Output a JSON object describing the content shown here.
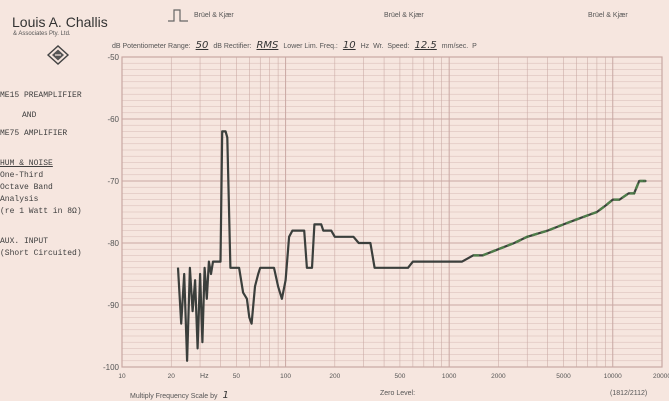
{
  "header": {
    "company": "Louis A. Challis",
    "company_sub": "& Associates Pty. Ltd.",
    "brands": [
      "Brüel & Kjær",
      "Brüel & Kjær",
      "Brüel & Kjær"
    ],
    "potentiometer_label": "dB Potentiometer Range:",
    "potentiometer_value": "50",
    "rectifier_label": "dB  Rectifier:",
    "rectifier_value": "RMS",
    "lower_freq_label": "Lower Lim. Freq.:",
    "lower_freq_value": "10",
    "hz_label": "Hz",
    "wr_label": "Wr.",
    "speed_label": "Speed:",
    "speed_value": "12.5",
    "speed_unit": "mm/sec.",
    "paper_speed": "P"
  },
  "side_labels": {
    "line1": "ME15 PREAMPLIFIER",
    "line2": "AND",
    "line3": "ME75 AMPLIFIER",
    "line4": "HUM & NOISE",
    "line5": "One-Third",
    "line6": "Octave Band",
    "line7": "Analysis",
    "line8": "(re 1 Watt in 8Ω)",
    "line9": "AUX. INPUT",
    "line10": "(Short Circuited)"
  },
  "footer": {
    "multiply_label": "Multiply Frequency Scale by",
    "multiply_value": "1",
    "zero_level": "Zero Level:",
    "chart_number": "(1812/2112)"
  },
  "colors": {
    "trace": "#3b3f3c",
    "trace_green": "#4f7d4a",
    "grid": "#c9a8a3",
    "paper": "#f6e6df"
  },
  "chart_data": {
    "type": "line",
    "x_scale": "log",
    "xlim": [
      10,
      20000
    ],
    "ylim": [
      -100,
      -50
    ],
    "grid": true,
    "y_ticks": [
      {
        "value": -50,
        "label": "-50"
      },
      {
        "value": -60,
        "label": "-60"
      },
      {
        "value": -70,
        "label": "-70"
      },
      {
        "value": -80,
        "label": "-80"
      },
      {
        "value": -90,
        "label": "-90"
      },
      {
        "value": -100,
        "label": "-100"
      }
    ],
    "x_ticks": [
      {
        "value": 10,
        "label": "10"
      },
      {
        "value": 20,
        "label": "20"
      },
      {
        "value": 50,
        "label": "50"
      },
      {
        "value": 100,
        "label": "100"
      },
      {
        "value": 200,
        "label": "200"
      },
      {
        "value": 500,
        "label": "500"
      },
      {
        "value": 1000,
        "label": "1000"
      },
      {
        "value": 2000,
        "label": "2000"
      },
      {
        "value": 5000,
        "label": "5000"
      },
      {
        "value": 10000,
        "label": "10000"
      },
      {
        "value": 20000,
        "label": "20000"
      }
    ],
    "x_unit_label": "Hz",
    "series": [
      {
        "x": [
          22,
          23,
          24,
          25,
          26,
          27,
          28,
          29,
          30,
          31,
          32,
          33,
          34,
          35,
          36,
          37,
          39,
          40,
          41,
          43,
          44,
          46,
          48,
          50,
          52,
          55,
          58,
          60,
          62,
          65,
          68,
          70,
          73,
          75,
          80,
          85,
          90,
          95,
          100,
          105,
          110,
          115,
          120,
          125,
          130,
          135,
          140,
          145,
          150,
          155,
          160,
          165,
          170,
          175,
          180,
          190,
          200,
          210,
          220,
          230,
          240,
          250,
          260,
          280,
          300,
          315,
          330,
          350,
          380,
          400,
          430,
          450,
          480,
          500,
          520,
          560,
          600,
          630,
          700,
          800,
          900,
          1000,
          1100,
          1200,
          1400,
          1600,
          2000,
          2500,
          3000,
          4000,
          5000,
          6300,
          8000,
          9000,
          10000,
          11000,
          12500,
          13500,
          14500,
          15500,
          16000
        ],
        "y": [
          -84,
          -93,
          -85,
          -99,
          -84,
          -91,
          -86,
          -97,
          -85,
          -96,
          -84,
          -89,
          -83,
          -85,
          -83,
          -83,
          -83,
          -83,
          -62,
          -62,
          -63,
          -84,
          -84,
          -84,
          -84,
          -88,
          -89,
          -92,
          -93,
          -87,
          -85,
          -84,
          -84,
          -84,
          -84,
          -84,
          -87,
          -89,
          -86,
          -79,
          -78,
          -78,
          -78,
          -78,
          -78,
          -84,
          -84,
          -84,
          -77,
          -77,
          -77,
          -77,
          -78,
          -78,
          -78,
          -78,
          -79,
          -79,
          -79,
          -79,
          -79,
          -79,
          -79,
          -80,
          -80,
          -80,
          -80,
          -84,
          -84,
          -84,
          -84,
          -84,
          -84,
          -84,
          -84,
          -84,
          -83,
          -83,
          -83,
          -83,
          -83,
          -83,
          -83,
          -83,
          -82,
          -82,
          -81,
          -80,
          -79,
          -78,
          -77,
          -76,
          -75,
          -74,
          -73,
          -73,
          -72,
          -72,
          -70,
          -70,
          -70
        ]
      }
    ]
  }
}
